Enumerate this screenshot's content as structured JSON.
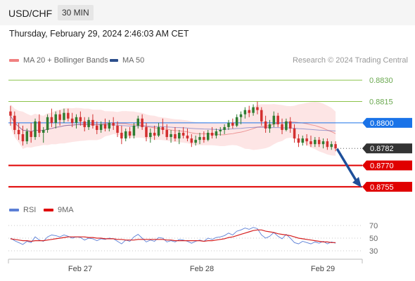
{
  "header": {
    "pair": "USD/CHF",
    "timeframe": "30 MIN",
    "datetime": "Thursday, February 29, 2024 2:46:03 AM CET"
  },
  "legend": {
    "ma20_label": "MA 20 + Bollinger Bands",
    "ma50_label": "MA 50",
    "research": "Research © 2024 Trading Central",
    "rsi_label": "RSI",
    "ma9_label": "9MA"
  },
  "colors": {
    "bull": "#2e7d32",
    "bear": "#d32f2f",
    "bollinger_fill": "#fde1e1",
    "ma20": "#e57373",
    "ma50": "#3f51b5",
    "support": "#e00000",
    "resistance": "#8bc34a",
    "pivot": "#1a73e8",
    "arrow": "#1e4f9a"
  },
  "chart_data": [
    {
      "type": "candlestick",
      "title": "USD/CHF",
      "x_ticks": [
        "Feb 27",
        "Feb 28",
        "Feb 29"
      ],
      "ylim": [
        0.8748,
        0.8838
      ],
      "levels": [
        {
          "value": 0.883,
          "label": "0.8830",
          "kind": "resistance"
        },
        {
          "value": 0.8815,
          "label": "0.8815",
          "kind": "resistance"
        },
        {
          "value": 0.88,
          "label": "0.8800",
          "kind": "pivot"
        },
        {
          "value": 0.8782,
          "label": "0.8782",
          "kind": "last"
        },
        {
          "value": 0.877,
          "label": "0.8770",
          "kind": "support"
        },
        {
          "value": 0.8755,
          "label": "0.8755",
          "kind": "support"
        }
      ],
      "candles": [
        {
          "o": 0.8808,
          "h": 0.8812,
          "l": 0.8798,
          "c": 0.8805
        },
        {
          "o": 0.8805,
          "h": 0.8808,
          "l": 0.8792,
          "c": 0.8795
        },
        {
          "o": 0.8795,
          "h": 0.88,
          "l": 0.8788,
          "c": 0.8792
        },
        {
          "o": 0.8792,
          "h": 0.8798,
          "l": 0.8784,
          "c": 0.8787
        },
        {
          "o": 0.8787,
          "h": 0.8796,
          "l": 0.8785,
          "c": 0.8794
        },
        {
          "o": 0.8794,
          "h": 0.88,
          "l": 0.8786,
          "c": 0.879
        },
        {
          "o": 0.879,
          "h": 0.8803,
          "l": 0.8788,
          "c": 0.8801
        },
        {
          "o": 0.8801,
          "h": 0.8806,
          "l": 0.879,
          "c": 0.8793
        },
        {
          "o": 0.8793,
          "h": 0.8797,
          "l": 0.8786,
          "c": 0.8795
        },
        {
          "o": 0.8795,
          "h": 0.8806,
          "l": 0.8793,
          "c": 0.8804
        },
        {
          "o": 0.8804,
          "h": 0.881,
          "l": 0.8797,
          "c": 0.88
        },
        {
          "o": 0.88,
          "h": 0.8808,
          "l": 0.8796,
          "c": 0.8806
        },
        {
          "o": 0.8806,
          "h": 0.8809,
          "l": 0.8798,
          "c": 0.8802
        },
        {
          "o": 0.8802,
          "h": 0.881,
          "l": 0.88,
          "c": 0.8807
        },
        {
          "o": 0.8807,
          "h": 0.881,
          "l": 0.8801,
          "c": 0.8803
        },
        {
          "o": 0.8803,
          "h": 0.8807,
          "l": 0.8797,
          "c": 0.88
        },
        {
          "o": 0.88,
          "h": 0.8806,
          "l": 0.8796,
          "c": 0.8804
        },
        {
          "o": 0.8804,
          "h": 0.8808,
          "l": 0.8798,
          "c": 0.8801
        },
        {
          "o": 0.8801,
          "h": 0.8804,
          "l": 0.8794,
          "c": 0.8797
        },
        {
          "o": 0.8797,
          "h": 0.8804,
          "l": 0.8795,
          "c": 0.8802
        },
        {
          "o": 0.8802,
          "h": 0.8806,
          "l": 0.8796,
          "c": 0.8798
        },
        {
          "o": 0.8798,
          "h": 0.8801,
          "l": 0.8792,
          "c": 0.8795
        },
        {
          "o": 0.8795,
          "h": 0.8801,
          "l": 0.8793,
          "c": 0.8799
        },
        {
          "o": 0.8799,
          "h": 0.8803,
          "l": 0.8794,
          "c": 0.8796
        },
        {
          "o": 0.8796,
          "h": 0.8802,
          "l": 0.8794,
          "c": 0.88
        },
        {
          "o": 0.88,
          "h": 0.8804,
          "l": 0.8795,
          "c": 0.8798
        },
        {
          "o": 0.8798,
          "h": 0.8801,
          "l": 0.879,
          "c": 0.8793
        },
        {
          "o": 0.8793,
          "h": 0.8798,
          "l": 0.8785,
          "c": 0.8789
        },
        {
          "o": 0.8789,
          "h": 0.8796,
          "l": 0.8787,
          "c": 0.8794
        },
        {
          "o": 0.8794,
          "h": 0.8797,
          "l": 0.8789,
          "c": 0.8791
        },
        {
          "o": 0.8791,
          "h": 0.88,
          "l": 0.8789,
          "c": 0.8798
        },
        {
          "o": 0.8798,
          "h": 0.8805,
          "l": 0.8796,
          "c": 0.8803
        },
        {
          "o": 0.8803,
          "h": 0.8806,
          "l": 0.8795,
          "c": 0.8797
        },
        {
          "o": 0.8797,
          "h": 0.88,
          "l": 0.8787,
          "c": 0.879
        },
        {
          "o": 0.879,
          "h": 0.8796,
          "l": 0.8786,
          "c": 0.8793
        },
        {
          "o": 0.8793,
          "h": 0.8798,
          "l": 0.8788,
          "c": 0.8791
        },
        {
          "o": 0.8791,
          "h": 0.88,
          "l": 0.879,
          "c": 0.8797
        },
        {
          "o": 0.8797,
          "h": 0.8803,
          "l": 0.8792,
          "c": 0.8795
        },
        {
          "o": 0.8795,
          "h": 0.8799,
          "l": 0.8788,
          "c": 0.879
        },
        {
          "o": 0.879,
          "h": 0.8795,
          "l": 0.8786,
          "c": 0.8792
        },
        {
          "o": 0.8792,
          "h": 0.8797,
          "l": 0.8787,
          "c": 0.8789
        },
        {
          "o": 0.8789,
          "h": 0.8795,
          "l": 0.8785,
          "c": 0.8793
        },
        {
          "o": 0.8793,
          "h": 0.8797,
          "l": 0.8789,
          "c": 0.8791
        },
        {
          "o": 0.8791,
          "h": 0.8796,
          "l": 0.8787,
          "c": 0.8789
        },
        {
          "o": 0.8789,
          "h": 0.8792,
          "l": 0.8783,
          "c": 0.8786
        },
        {
          "o": 0.8786,
          "h": 0.8791,
          "l": 0.8784,
          "c": 0.8788
        },
        {
          "o": 0.8788,
          "h": 0.8793,
          "l": 0.8785,
          "c": 0.879
        },
        {
          "o": 0.879,
          "h": 0.8794,
          "l": 0.8786,
          "c": 0.8788
        },
        {
          "o": 0.8788,
          "h": 0.8795,
          "l": 0.8787,
          "c": 0.8793
        },
        {
          "o": 0.8793,
          "h": 0.8797,
          "l": 0.8789,
          "c": 0.8791
        },
        {
          "o": 0.8791,
          "h": 0.8796,
          "l": 0.8789,
          "c": 0.8794
        },
        {
          "o": 0.8794,
          "h": 0.8797,
          "l": 0.8791,
          "c": 0.8795
        },
        {
          "o": 0.8795,
          "h": 0.8799,
          "l": 0.8792,
          "c": 0.8797
        },
        {
          "o": 0.8797,
          "h": 0.8802,
          "l": 0.8795,
          "c": 0.88
        },
        {
          "o": 0.88,
          "h": 0.8803,
          "l": 0.8796,
          "c": 0.8798
        },
        {
          "o": 0.8798,
          "h": 0.8806,
          "l": 0.8797,
          "c": 0.8804
        },
        {
          "o": 0.8804,
          "h": 0.8808,
          "l": 0.8799,
          "c": 0.8806
        },
        {
          "o": 0.8806,
          "h": 0.8811,
          "l": 0.8803,
          "c": 0.8809
        },
        {
          "o": 0.8809,
          "h": 0.8812,
          "l": 0.8804,
          "c": 0.8807
        },
        {
          "o": 0.8807,
          "h": 0.8813,
          "l": 0.8805,
          "c": 0.8811
        },
        {
          "o": 0.8811,
          "h": 0.8815,
          "l": 0.8806,
          "c": 0.8809
        },
        {
          "o": 0.8809,
          "h": 0.8811,
          "l": 0.8798,
          "c": 0.8801
        },
        {
          "o": 0.8801,
          "h": 0.8805,
          "l": 0.8793,
          "c": 0.8796
        },
        {
          "o": 0.8796,
          "h": 0.8802,
          "l": 0.8793,
          "c": 0.8799
        },
        {
          "o": 0.8799,
          "h": 0.8808,
          "l": 0.8797,
          "c": 0.8805
        },
        {
          "o": 0.8805,
          "h": 0.8807,
          "l": 0.8797,
          "c": 0.8799
        },
        {
          "o": 0.8799,
          "h": 0.8803,
          "l": 0.8792,
          "c": 0.8795
        },
        {
          "o": 0.8795,
          "h": 0.8803,
          "l": 0.8794,
          "c": 0.8801
        },
        {
          "o": 0.8801,
          "h": 0.8804,
          "l": 0.8793,
          "c": 0.8796
        },
        {
          "o": 0.8796,
          "h": 0.8799,
          "l": 0.8786,
          "c": 0.8789
        },
        {
          "o": 0.8789,
          "h": 0.8792,
          "l": 0.8783,
          "c": 0.8786
        },
        {
          "o": 0.8786,
          "h": 0.8791,
          "l": 0.8784,
          "c": 0.8789
        },
        {
          "o": 0.8789,
          "h": 0.8792,
          "l": 0.8784,
          "c": 0.8787
        },
        {
          "o": 0.8787,
          "h": 0.8791,
          "l": 0.8783,
          "c": 0.8785
        },
        {
          "o": 0.8785,
          "h": 0.879,
          "l": 0.8783,
          "c": 0.8788
        },
        {
          "o": 0.8788,
          "h": 0.879,
          "l": 0.8783,
          "c": 0.8785
        },
        {
          "o": 0.8785,
          "h": 0.8789,
          "l": 0.8782,
          "c": 0.8787
        },
        {
          "o": 0.8787,
          "h": 0.8789,
          "l": 0.8781,
          "c": 0.8783
        },
        {
          "o": 0.8783,
          "h": 0.8787,
          "l": 0.8781,
          "c": 0.8785
        },
        {
          "o": 0.8785,
          "h": 0.8787,
          "l": 0.878,
          "c": 0.8782
        }
      ]
    },
    {
      "type": "line",
      "title": "RSI",
      "ylim": [
        20,
        80
      ],
      "y_ticks": [
        70,
        50,
        30
      ],
      "series": [
        {
          "name": "RSI",
          "values": [
            50,
            46,
            43,
            40,
            45,
            43,
            52,
            47,
            45,
            52,
            55,
            54,
            52,
            55,
            53,
            50,
            52,
            51,
            47,
            50,
            49,
            46,
            49,
            48,
            50,
            49,
            45,
            41,
            47,
            45,
            52,
            56,
            50,
            44,
            47,
            45,
            51,
            50,
            44,
            46,
            44,
            48,
            47,
            45,
            42,
            45,
            47,
            45,
            50,
            48,
            51,
            52,
            54,
            58,
            55,
            61,
            63,
            66,
            64,
            67,
            65,
            55,
            50,
            53,
            59,
            53,
            49,
            56,
            50,
            43,
            41,
            45,
            43,
            41,
            44,
            42,
            45,
            41,
            44,
            42
          ]
        },
        {
          "name": "9MA",
          "values": [
            49,
            48,
            47,
            46,
            46,
            45,
            46,
            46,
            46,
            47,
            48,
            49,
            50,
            51,
            52,
            52,
            52,
            52,
            52,
            51,
            51,
            50,
            50,
            49,
            49,
            49,
            48,
            48,
            47,
            47,
            47,
            48,
            48,
            48,
            48,
            48,
            48,
            48,
            47,
            47,
            46,
            46,
            46,
            46,
            46,
            46,
            46,
            45,
            46,
            46,
            47,
            48,
            49,
            51,
            52,
            54,
            56,
            58,
            60,
            62,
            63,
            63,
            61,
            60,
            59,
            57,
            56,
            55,
            54,
            52,
            50,
            49,
            48,
            47,
            46,
            45,
            44,
            44,
            43,
            43
          ]
        }
      ]
    }
  ]
}
